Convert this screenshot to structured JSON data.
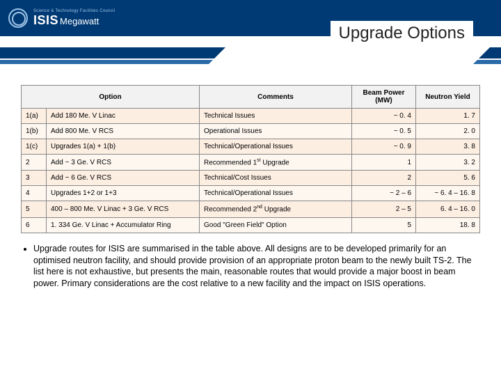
{
  "logo": {
    "stfc": "Science & Technology Facilities Council",
    "isis": "ISIS",
    "megawatt": "Megawatt"
  },
  "title": "Upgrade Options",
  "table": {
    "headers": {
      "option": "Option",
      "comments": "Comments",
      "beam_power": "Beam Power (MW)",
      "neutron_yield": "Neutron Yield"
    },
    "rows": [
      {
        "id": "1(a)",
        "option": "Add 180 Me. V Linac",
        "comments": "Technical Issues",
        "beam_power": "~ 0. 4",
        "neutron_yield": "1. 7"
      },
      {
        "id": "1(b)",
        "option": "Add 800 Me. V RCS",
        "comments": "Operational Issues",
        "beam_power": "~ 0. 5",
        "neutron_yield": "2. 0"
      },
      {
        "id": "1(c)",
        "option": "Upgrades 1(a) + 1(b)",
        "comments": "Technical/Operational Issues",
        "beam_power": "~ 0. 9",
        "neutron_yield": "3. 8"
      },
      {
        "id": "2",
        "option": "Add ~ 3 Ge. V RCS",
        "comments_pre": "Recommended 1",
        "comments_sup": "st",
        "comments_post": " Upgrade",
        "beam_power": "1",
        "neutron_yield": "3. 2"
      },
      {
        "id": "3",
        "option": "Add ~ 6 Ge. V RCS",
        "comments": "Technical/Cost Issues",
        "beam_power": "2",
        "neutron_yield": "5. 6"
      },
      {
        "id": "4",
        "option": "Upgrades 1+2 or 1+3",
        "comments": "Technical/Operational Issues",
        "beam_power": "~ 2 – 6",
        "neutron_yield": "~ 6. 4 – 16. 8"
      },
      {
        "id": "5",
        "option": "400 – 800 Me. V Linac + 3 Ge. V RCS",
        "comments_pre": "Recommended 2",
        "comments_sup": "nd",
        "comments_post": " Upgrade",
        "beam_power": "2 – 5",
        "neutron_yield": "6. 4 – 16. 0"
      },
      {
        "id": "6",
        "option": "1. 334 Ge. V Linac + Accumulator Ring",
        "comments": "Good \"Green Field\" Option",
        "beam_power": "5",
        "neutron_yield": "18. 8"
      }
    ]
  },
  "bullet": "Upgrade routes for ISIS are summarised in the table above. All designs are to be developed primarily for an optimised neutron facility, and should provide provision of an appropriate proton beam to the newly built TS-2. The list here is not exhaustive, but presents the main, reasonable routes that would provide a major boost in beam power. Primary considerations are the cost relative to a new facility and the impact on ISIS operations.",
  "colors": {
    "header_bg": "#003a74",
    "band2": "#2a6aa8",
    "row_odd": "#fdeee2",
    "row_even": "#fdf7f0",
    "border": "#888888"
  }
}
